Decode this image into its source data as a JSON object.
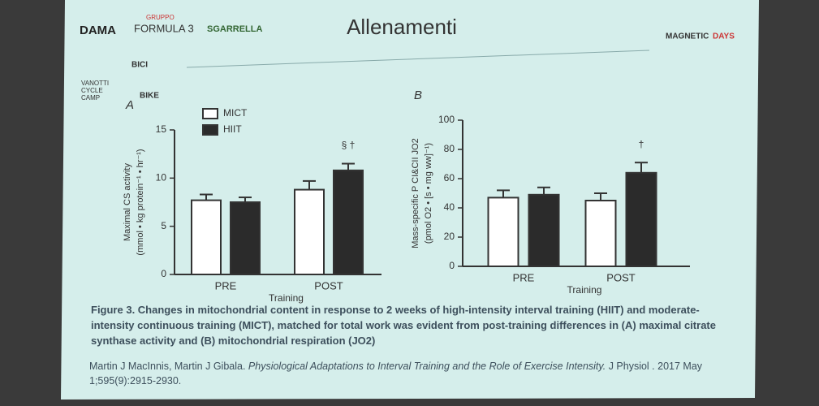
{
  "slide": {
    "title": "Allenamenti",
    "logos": [
      "DAMA",
      "GRUPPO",
      "FORMULA 3",
      "SGARRELLA",
      "VANOTTI",
      "CYCLE",
      "CAMP",
      "BICI",
      "BIKE",
      "MAGNETIC",
      "DAYS"
    ],
    "caption": "Figure 3. Changes in mitochondrial content in response to 2 weeks of high-intensity interval training (HIIT) and moderate-intensity continuous training (MICT), matched for total work was evident from post-training differences in (A) maximal citrate synthase activity and (B) mitochondrial respiration (JO2)",
    "citation": {
      "authors": "Martin J MacInnis, Martin J Gibala.",
      "title": "Physiological Adaptations to Interval Training and the Role of Exercise Intensity.",
      "journal": "J Physiol . 2017 May 1;595(9):2915-2930."
    }
  },
  "chart_data": [
    {
      "type": "bar",
      "panel": "A",
      "ylabel": [
        "Maximal CS activity",
        "(mmol • kg protein⁻¹ • hr⁻¹)"
      ],
      "xlabel": "Training",
      "categories": [
        "PRE",
        "POST"
      ],
      "annotation": "§ †",
      "series": [
        {
          "name": "MICT",
          "color": "#ffffff",
          "values": [
            7.7,
            8.8
          ],
          "errors": [
            0.6,
            0.9
          ]
        },
        {
          "name": "HIIT",
          "color": "#2b2b2b",
          "values": [
            7.5,
            10.8
          ],
          "errors": [
            0.5,
            0.7
          ]
        }
      ],
      "ylim": [
        0,
        15
      ],
      "yticks": [
        0,
        5,
        10,
        15
      ]
    },
    {
      "type": "bar",
      "panel": "B",
      "ylabel": [
        "Mass-specific P CI&CII JO2",
        "(pmol O2 • [s • mg ww]⁻¹)"
      ],
      "xlabel": "Training",
      "categories": [
        "PRE",
        "POST"
      ],
      "annotation": "†",
      "series": [
        {
          "color": "#ffffff",
          "values": [
            47,
            45
          ],
          "errors": [
            5,
            5
          ]
        },
        {
          "color": "#2b2b2b",
          "values": [
            49,
            64
          ],
          "errors": [
            5,
            7
          ]
        }
      ],
      "ylim": [
        0,
        100
      ],
      "yticks": [
        0,
        20,
        40,
        60,
        80,
        100
      ]
    }
  ]
}
